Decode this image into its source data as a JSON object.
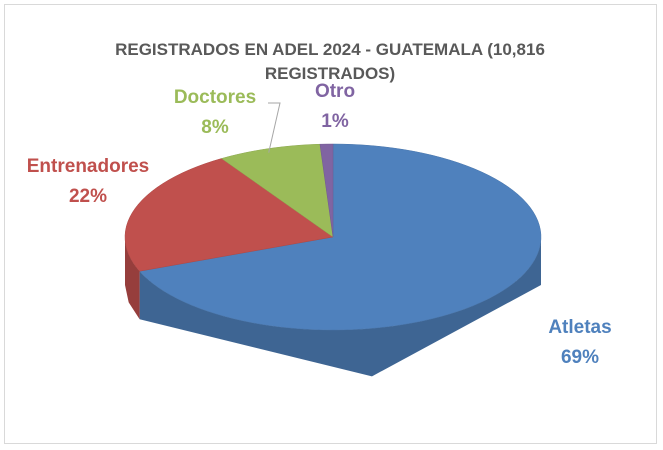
{
  "chart_data": {
    "type": "pie3d",
    "title": "REGISTRADOS EN ADEL 2024 - GUATEMALA (10,816 REGISTRADOS)",
    "categories": [
      "Atletas",
      "Entrenadores",
      "Doctores",
      "Otro"
    ],
    "values": [
      69,
      22,
      8,
      1
    ],
    "value_labels": [
      "69%",
      "22%",
      "8%",
      "1%"
    ],
    "colors": [
      "#4f81bd",
      "#c0504d",
      "#9bbb59",
      "#8064a2"
    ]
  }
}
